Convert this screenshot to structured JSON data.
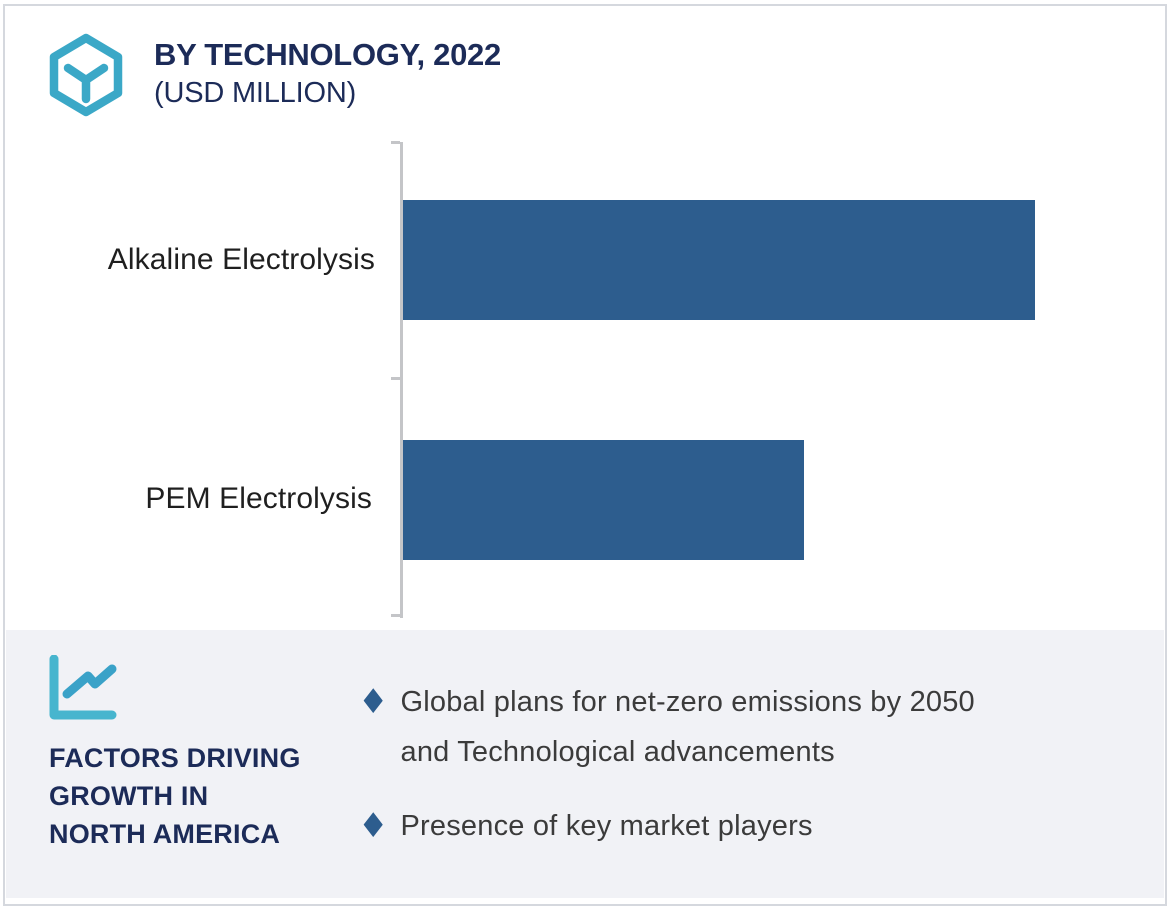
{
  "header": {
    "icon": "hexagon-cube-icon",
    "title": "BY TECHNOLOGY, 2022",
    "subtitle": "(USD MILLION)"
  },
  "chart_data": {
    "type": "bar",
    "orientation": "horizontal",
    "title": "BY TECHNOLOGY, 2022",
    "units_label": "(USD MILLION)",
    "categories": [
      "Alkaline Electrolysis",
      "PEM Electrolysis"
    ],
    "values": [
      100,
      63.5
    ],
    "values_note": "relative bar lengths as % of longest bar; no numeric value labels, value axis or gridlines are shown in the chart",
    "xlim": [
      0,
      100
    ],
    "grid": false,
    "legend": false,
    "bar_color": "#2d5d8e",
    "axis_color": "#c4c5c8"
  },
  "factors_panel": {
    "icon": "line-chart-icon",
    "heading": "FACTORS DRIVING\nGROWTH IN\nNORTH AMERICA",
    "bullet_glyph": "♦",
    "bullets": [
      "Global plans for net-zero emissions by 2050\nand Technological advancements",
      "Presence of key market players"
    ]
  },
  "colors": {
    "bar_blue": "#2d5d8e",
    "teal_accent": "#3ba8c7",
    "teal_accent_light": "#47b5ce",
    "navy_text": "#1c2b58",
    "body_text": "#3b3b3b",
    "panel_bg": "#f1f2f6",
    "axis_gray": "#c4c5c8",
    "frame_border": "#d5d8de"
  }
}
